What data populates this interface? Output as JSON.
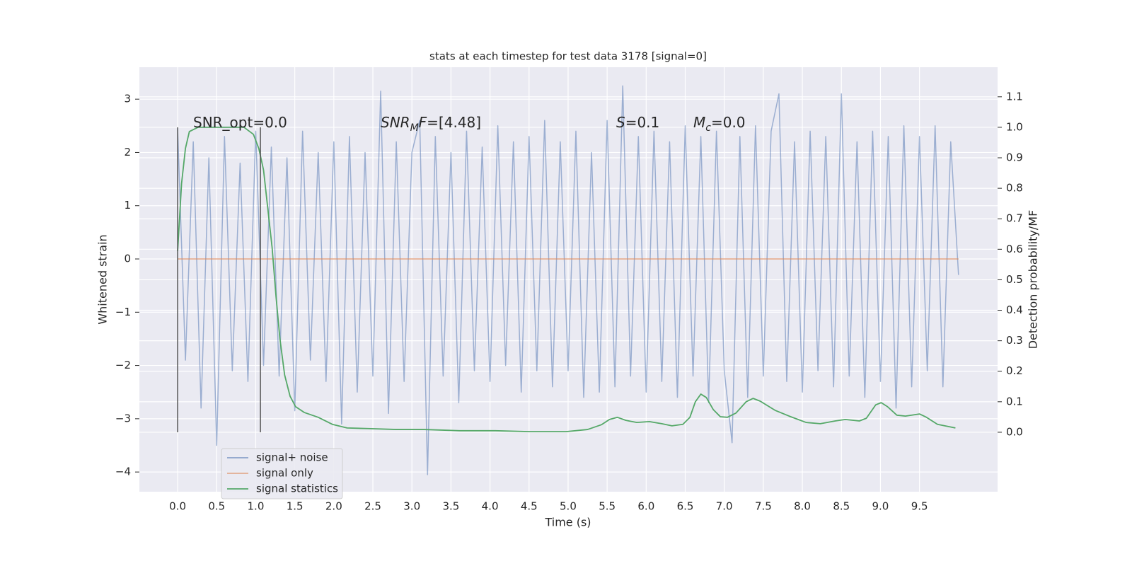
{
  "chart_data": {
    "type": "line",
    "title": "stats at each timestep for test data 3178 [signal=0]",
    "x_label": "Time (s)",
    "y_label": "Whitened strain",
    "y2_label": "Detection probability/MF",
    "annotations": {
      "snr_opt": "SNR_opt=0.0",
      "snr_mf": {
        "base": "SNR",
        "sub": "M",
        "rest1": "F",
        "rest2": "=[4.48]"
      },
      "s": {
        "base": "S",
        "rest": "=0.1"
      },
      "mc": {
        "base": "M",
        "sub": "c",
        "rest": "=0.0"
      }
    },
    "grid": true,
    "legend": "lower left",
    "xlim": [
      -0.49,
      10.5
    ],
    "ylim": [
      -4.37,
      3.6
    ],
    "y2lim": [
      -0.195,
      1.197
    ],
    "xticks": [
      {
        "value": 0,
        "label": "0.0"
      },
      {
        "value": 0.5,
        "label": "0.5"
      },
      {
        "value": 1,
        "label": "1.0"
      },
      {
        "value": 1.5,
        "label": "1.5"
      },
      {
        "value": 2,
        "label": "2.0"
      },
      {
        "value": 2.5,
        "label": "2.5"
      },
      {
        "value": 3,
        "label": "3.0"
      },
      {
        "value": 3.5,
        "label": "3.5"
      },
      {
        "value": 4,
        "label": "4.0"
      },
      {
        "value": 4.5,
        "label": "4.5"
      },
      {
        "value": 5,
        "label": "5.0"
      },
      {
        "value": 5.5,
        "label": "5.5"
      },
      {
        "value": 6,
        "label": "6.0"
      },
      {
        "value": 6.5,
        "label": "6.5"
      },
      {
        "value": 7,
        "label": "7.0"
      },
      {
        "value": 7.5,
        "label": "7.5"
      },
      {
        "value": 8,
        "label": "8.0"
      },
      {
        "value": 8.5,
        "label": "8.5"
      },
      {
        "value": 9,
        "label": "9.0"
      },
      {
        "value": 9.5,
        "label": "9.5"
      }
    ],
    "yticks": [
      {
        "value": -4,
        "label": "−4"
      },
      {
        "value": -3,
        "label": "−3"
      },
      {
        "value": -2,
        "label": "−2"
      },
      {
        "value": -1,
        "label": "−1"
      },
      0,
      1,
      2,
      3
    ],
    "y2ticks": [
      {
        "value": 0,
        "label": "0.0"
      },
      {
        "value": 0.1,
        "label": "0.1"
      },
      {
        "value": 0.2,
        "label": "0.2"
      },
      {
        "value": 0.3,
        "label": "0.3"
      },
      {
        "value": 0.4,
        "label": "0.4"
      },
      {
        "value": 0.5,
        "label": "0.5"
      },
      {
        "value": 0.6,
        "label": "0.6"
      },
      {
        "value": 0.7,
        "label": "0.7"
      },
      {
        "value": 0.8,
        "label": "0.8"
      },
      {
        "value": 0.9,
        "label": "0.9"
      },
      {
        "value": 1.0,
        "label": "1.0"
      },
      {
        "value": 1.1,
        "label": "1.1"
      }
    ],
    "vlines": {
      "color": "#555555",
      "x": [
        0,
        1.06
      ]
    },
    "series": [
      {
        "name": "signal+ noise",
        "color": "#4c72b0",
        "x": [
          0.0,
          0.1,
          0.2,
          0.3,
          0.4,
          0.5,
          0.6,
          0.7,
          0.8,
          0.9,
          1.0,
          1.1,
          1.2,
          1.3,
          1.4,
          1.5,
          1.6,
          1.7,
          1.8,
          1.9,
          2.0,
          2.1,
          2.2,
          2.3,
          2.4,
          2.5,
          2.6,
          2.7,
          2.8,
          2.9,
          3.0,
          3.1,
          3.2,
          3.3,
          3.4,
          3.5,
          3.6,
          3.7,
          3.8,
          3.9,
          4.0,
          4.1,
          4.2,
          4.3,
          4.4,
          4.5,
          4.6,
          4.7,
          4.8,
          4.9,
          5.0,
          5.1,
          5.2,
          5.3,
          5.4,
          5.5,
          5.6,
          5.7,
          5.8,
          5.9,
          6.0,
          6.1,
          6.2,
          6.3,
          6.4,
          6.5,
          6.6,
          6.7,
          6.8,
          6.9,
          7.0,
          7.1,
          7.2,
          7.3,
          7.4,
          7.5,
          7.6,
          7.7,
          7.8,
          7.9,
          8.0,
          8.1,
          8.2,
          8.3,
          8.4,
          8.5,
          8.6,
          8.7,
          8.8,
          8.9,
          9.0,
          9.1,
          9.2,
          9.3,
          9.4,
          9.5,
          9.6,
          9.7,
          9.8,
          9.9,
          10.0
        ],
        "values": [
          2.45,
          -1.9,
          2.2,
          -2.8,
          1.9,
          -3.5,
          2.3,
          -2.1,
          1.8,
          -2.3,
          2.4,
          -2.0,
          2.1,
          -2.2,
          1.9,
          -2.85,
          2.4,
          -1.9,
          2.0,
          -2.3,
          2.2,
          -3.1,
          2.3,
          -2.5,
          2.0,
          -2.2,
          3.15,
          -2.9,
          2.2,
          -2.3,
          2.0,
          2.6,
          -4.05,
          2.3,
          -2.2,
          2.0,
          -2.7,
          2.4,
          -2.1,
          2.1,
          -2.3,
          2.5,
          -2.0,
          2.2,
          -2.5,
          2.3,
          -2.1,
          2.6,
          -2.4,
          2.2,
          -2.1,
          2.4,
          -2.6,
          2.0,
          -2.5,
          2.6,
          -2.4,
          3.25,
          -2.2,
          2.3,
          -2.5,
          2.4,
          -2.3,
          2.2,
          -2.6,
          2.5,
          -2.2,
          2.3,
          -2.7,
          2.4,
          -2.1,
          -3.45,
          2.3,
          -2.6,
          2.5,
          -2.2,
          2.4,
          3.1,
          -2.3,
          2.2,
          -2.5,
          2.4,
          -2.1,
          2.3,
          -2.4,
          3.1,
          -2.2,
          2.2,
          -2.6,
          2.4,
          -2.3,
          2.3,
          -2.8,
          2.5,
          -2.4,
          2.3,
          -2.1,
          2.5,
          -2.4,
          2.2,
          -0.3
        ]
      },
      {
        "name": "signal only",
        "color": "#dd8452",
        "x": [
          0,
          10.0
        ],
        "values": [
          0,
          0
        ]
      },
      {
        "name": "signal statistics",
        "color": "#55a868",
        "axis": "y2",
        "x": [
          0,
          0.05,
          0.1,
          0.15,
          0.26,
          0.44,
          0.63,
          0.85,
          0.97,
          1.04,
          1.1,
          1.15,
          1.21,
          1.26,
          1.31,
          1.37,
          1.44,
          1.51,
          1.62,
          1.8,
          1.98,
          2.17,
          2.44,
          2.8,
          3.16,
          3.61,
          4.07,
          4.52,
          4.97,
          5.25,
          5.43,
          5.53,
          5.63,
          5.74,
          5.88,
          6.04,
          6.2,
          6.33,
          6.47,
          6.56,
          6.63,
          6.7,
          6.77,
          6.86,
          6.95,
          7.04,
          7.15,
          7.28,
          7.37,
          7.46,
          7.65,
          7.83,
          8.05,
          8.23,
          8.42,
          8.55,
          8.73,
          8.82,
          8.94,
          9.01,
          9.09,
          9.21,
          9.32,
          9.5,
          9.59,
          9.73,
          9.96
        ],
        "values": [
          0.594,
          0.815,
          0.931,
          0.986,
          1.0,
          1.0,
          1.0,
          1.0,
          0.977,
          0.93,
          0.86,
          0.744,
          0.605,
          0.445,
          0.306,
          0.188,
          0.118,
          0.084,
          0.065,
          0.049,
          0.026,
          0.014,
          0.012,
          0.009,
          0.009,
          0.005,
          0.005,
          0.002,
          0.002,
          0.009,
          0.025,
          0.042,
          0.049,
          0.039,
          0.032,
          0.035,
          0.028,
          0.021,
          0.026,
          0.049,
          0.1,
          0.125,
          0.114,
          0.074,
          0.051,
          0.049,
          0.063,
          0.1,
          0.111,
          0.102,
          0.072,
          0.053,
          0.032,
          0.028,
          0.037,
          0.042,
          0.037,
          0.046,
          0.09,
          0.097,
          0.084,
          0.056,
          0.053,
          0.06,
          0.049,
          0.026,
          0.014
        ]
      }
    ]
  }
}
